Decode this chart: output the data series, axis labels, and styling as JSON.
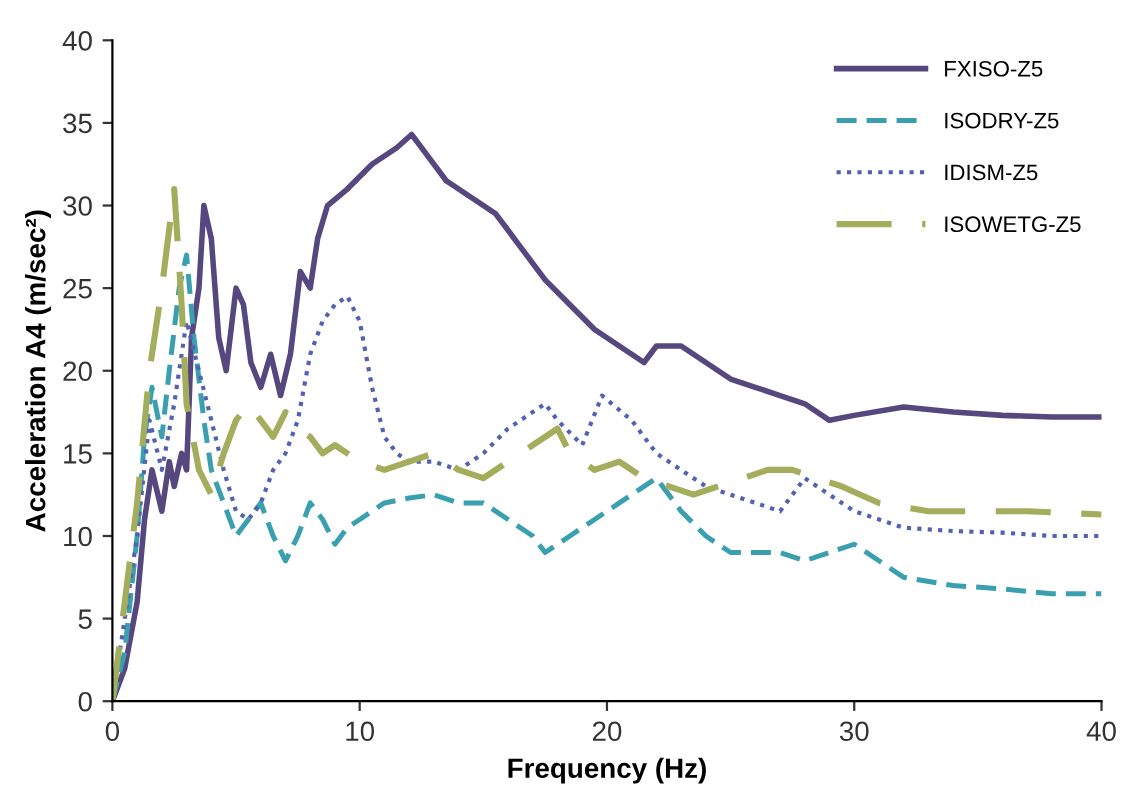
{
  "chart_data": {
    "type": "line",
    "xlabel": "Frequency (Hz)",
    "ylabel": "Acceleration A4 (m/sec²)",
    "xlim": [
      0,
      40
    ],
    "ylim": [
      0,
      40
    ],
    "xticks": [
      0,
      10,
      20,
      30,
      40
    ],
    "yticks": [
      0,
      5,
      10,
      15,
      20,
      25,
      30,
      35,
      40
    ],
    "grid": false,
    "legend": "top right",
    "marker": "none",
    "series": [
      {
        "name": "FXISO-Z5",
        "color": "#56477f",
        "line_style": "solid",
        "x": [
          0,
          0.5,
          1,
          1.3,
          1.6,
          2,
          2.3,
          2.5,
          2.8,
          3,
          3.2,
          3.5,
          3.7,
          4,
          4.3,
          4.6,
          5,
          5.3,
          5.6,
          6,
          6.4,
          6.8,
          7.2,
          7.6,
          8,
          8.3,
          8.7,
          9.5,
          10.5,
          11.5,
          12.1,
          12.5,
          13.5,
          14.5,
          15.5,
          16.5,
          17.5,
          18.5,
          19.5,
          20.5,
          21.5,
          22,
          23,
          24,
          25,
          26,
          27,
          28,
          29,
          30,
          32,
          34,
          36,
          38,
          40
        ],
        "values": [
          0,
          2,
          6,
          11,
          14,
          11.5,
          14.5,
          13,
          15,
          14,
          22,
          25,
          30,
          28,
          22,
          20,
          25,
          24,
          20.5,
          19,
          21,
          18.5,
          21,
          26,
          25,
          28,
          30,
          31,
          32.5,
          33.5,
          34.3,
          33.5,
          31.5,
          30.5,
          29.5,
          27.5,
          25.5,
          24,
          22.5,
          21.5,
          20.5,
          21.5,
          21.5,
          20.5,
          19.5,
          19,
          18.5,
          18,
          17,
          17.3,
          17.8,
          17.5,
          17.3,
          17.2,
          17.2
        ]
      },
      {
        "name": "ISODRY-Z5",
        "color": "#3aa0b0",
        "line_style": "dashed",
        "x": [
          0,
          0.5,
          1,
          1.3,
          1.6,
          2,
          2.3,
          2.7,
          3,
          3.3,
          3.7,
          4,
          4.5,
          5,
          5.5,
          6,
          6.5,
          7,
          7.5,
          8,
          8.5,
          9,
          9.5,
          10,
          11,
          12,
          13,
          14,
          15,
          16,
          17,
          17.5,
          18.5,
          19.5,
          20.5,
          21.5,
          22,
          23,
          24,
          25,
          26,
          27,
          28,
          29,
          30,
          31,
          32,
          34,
          36,
          38,
          40
        ],
        "values": [
          0,
          3,
          10,
          16,
          19,
          16,
          20,
          25,
          27,
          22,
          17,
          14,
          12,
          10,
          11,
          12,
          10,
          8.5,
          10,
          12,
          11,
          9.5,
          10.5,
          11,
          12,
          12.3,
          12.5,
          12,
          12,
          11,
          10,
          9,
          10,
          11,
          12,
          13,
          13.5,
          11.5,
          10,
          9,
          9,
          9,
          8.5,
          9,
          9.5,
          8.5,
          7.5,
          7,
          6.8,
          6.5,
          6.5
        ]
      },
      {
        "name": "IDISM-Z5",
        "color": "#5262b0",
        "line_style": "dotted",
        "x": [
          0,
          1,
          1.5,
          2,
          2.5,
          3,
          3.5,
          4,
          4.5,
          5,
          5.5,
          6,
          6.5,
          7,
          7.5,
          8,
          8.5,
          9,
          9.5,
          10,
          10.5,
          11,
          11.5,
          12,
          13,
          14,
          15,
          16,
          17,
          17.5,
          18,
          19,
          19.8,
          21,
          22,
          23,
          24,
          25,
          26,
          27,
          27.5,
          28,
          29,
          30,
          32,
          34,
          36,
          38,
          40
        ],
        "values": [
          0,
          10,
          17,
          14,
          18,
          23,
          20,
          17,
          14,
          11.5,
          11,
          12,
          14,
          15,
          17,
          21,
          23,
          24,
          24.5,
          23,
          19,
          16,
          15,
          14.5,
          14.5,
          14,
          15,
          16.5,
          17.5,
          18,
          17,
          15.5,
          18.5,
          17,
          15,
          14,
          13,
          12.5,
          12,
          11.5,
          12.5,
          13.5,
          12.5,
          11.5,
          10.5,
          10.3,
          10.2,
          10,
          10
        ]
      },
      {
        "name": "ISOWETG-Z5",
        "color": "#a3ad5c",
        "line_style": "longdash",
        "x": [
          0,
          1,
          1.5,
          2,
          2.5,
          2.8,
          3,
          3.5,
          4,
          4.5,
          5,
          5.5,
          6,
          6.5,
          7,
          7.5,
          8,
          8.5,
          9,
          10,
          11,
          12,
          13,
          14,
          15,
          16,
          17,
          18,
          18.5,
          19.5,
          20.5,
          21.5,
          22.5,
          23.5,
          24.5,
          25.5,
          26.5,
          27.5,
          28.5,
          29.5,
          31,
          33,
          35,
          37,
          40
        ],
        "values": [
          0,
          12,
          20,
          25,
          31,
          24,
          18,
          14,
          12.5,
          15,
          17,
          18,
          17,
          16,
          17.5,
          16.5,
          16,
          15,
          15.5,
          14.5,
          14,
          14.5,
          15,
          14,
          13.5,
          14.5,
          15.5,
          16.5,
          15,
          14,
          14.5,
          13.5,
          13,
          12.5,
          13,
          13.5,
          14,
          14,
          13.5,
          13,
          12,
          11.5,
          11.5,
          11.5,
          11.3
        ]
      }
    ]
  }
}
